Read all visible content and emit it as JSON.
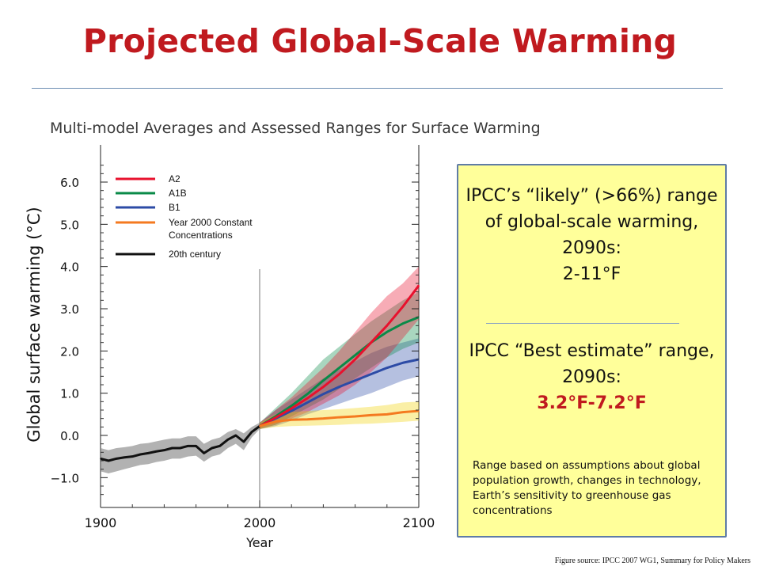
{
  "slide": {
    "title": "Projected Global-Scale Warming",
    "source": "Figure source: IPCC 2007 WG1, Summary for Policy Makers"
  },
  "info_box": {
    "likely_text": "IPCC’s “likely” (>66%) range of global-scale warming, 2090s:",
    "likely_range": "2-11°F",
    "best_text": "IPCC “Best estimate” range, 2090s:",
    "best_range": "3.2°F-7.2°F",
    "note": "Range based on assumptions about global population growth,  changes in technology, Earth’s sensitivity to greenhouse gas concentrations",
    "background": "#ffff9a",
    "border": "#5f7ca6"
  },
  "colors": {
    "title": "#c01a1f",
    "best_range": "#c01a1f"
  },
  "chart_data": {
    "type": "line",
    "title": "Multi-model Averages and Assessed Ranges for Surface Warming",
    "xlabel": "Year",
    "ylabel": "Global surface warming (°C)",
    "xlim": [
      1900,
      2100
    ],
    "ylim": [
      -1.5,
      6.8
    ],
    "xticks": [
      1900,
      2000,
      2100
    ],
    "xtick_labels": [
      "1900",
      "2000",
      "2100"
    ],
    "yticks": [
      -1.0,
      0.0,
      1.0,
      2.0,
      3.0,
      4.0,
      5.0,
      6.0
    ],
    "ytick_labels": [
      "−1.0",
      "0.0",
      "1.0",
      "2.0",
      "3.0",
      "4.0",
      "5.0",
      "6.0"
    ],
    "divider_year": 2000,
    "legend_position": "top-left",
    "grid": false,
    "series": [
      {
        "name": "A2",
        "color": "#e8112d",
        "band_color": "#e8112d",
        "x": [
          2000,
          2010,
          2020,
          2030,
          2040,
          2050,
          2060,
          2070,
          2080,
          2090,
          2100
        ],
        "values": [
          0.22,
          0.42,
          0.64,
          0.88,
          1.15,
          1.45,
          1.8,
          2.2,
          2.6,
          3.05,
          3.55
        ],
        "upper": [
          0.3,
          0.6,
          0.9,
          1.25,
          1.6,
          2.0,
          2.45,
          2.9,
          3.3,
          3.6,
          4.0
        ],
        "lower": [
          0.15,
          0.25,
          0.4,
          0.55,
          0.75,
          0.95,
          1.2,
          1.5,
          1.85,
          2.3,
          2.75
        ]
      },
      {
        "name": "A1B",
        "color": "#0a8a48",
        "band_color": "#0a8a48",
        "x": [
          2000,
          2010,
          2020,
          2030,
          2040,
          2050,
          2060,
          2070,
          2080,
          2090,
          2100
        ],
        "values": [
          0.22,
          0.45,
          0.7,
          0.98,
          1.3,
          1.6,
          1.9,
          2.2,
          2.45,
          2.65,
          2.8
        ],
        "upper": [
          0.3,
          0.65,
          1.0,
          1.4,
          1.8,
          2.1,
          2.4,
          2.7,
          2.95,
          3.2,
          3.4
        ],
        "lower": [
          0.15,
          0.25,
          0.45,
          0.65,
          0.85,
          1.1,
          1.35,
          1.6,
          1.85,
          2.05,
          2.2
        ]
      },
      {
        "name": "B1",
        "color": "#2c4ba6",
        "band_color": "#2c4ba6",
        "x": [
          2000,
          2010,
          2020,
          2030,
          2040,
          2050,
          2060,
          2070,
          2080,
          2090,
          2100
        ],
        "values": [
          0.22,
          0.4,
          0.58,
          0.78,
          0.98,
          1.15,
          1.3,
          1.45,
          1.6,
          1.72,
          1.8
        ],
        "upper": [
          0.3,
          0.6,
          0.85,
          1.1,
          1.35,
          1.55,
          1.75,
          1.95,
          2.1,
          2.2,
          2.3
        ],
        "lower": [
          0.15,
          0.22,
          0.35,
          0.5,
          0.62,
          0.75,
          0.88,
          1.0,
          1.15,
          1.3,
          1.4
        ]
      },
      {
        "name": "Year 2000 Constant Concentrations",
        "color": "#f47a20",
        "band_color": "#f0d000",
        "x": [
          2000,
          2010,
          2020,
          2030,
          2040,
          2050,
          2060,
          2070,
          2080,
          2090,
          2100
        ],
        "values": [
          0.22,
          0.33,
          0.37,
          0.38,
          0.4,
          0.43,
          0.45,
          0.48,
          0.5,
          0.55,
          0.58
        ],
        "upper": [
          0.3,
          0.5,
          0.55,
          0.58,
          0.6,
          0.62,
          0.65,
          0.68,
          0.72,
          0.78,
          0.8
        ],
        "lower": [
          0.15,
          0.2,
          0.22,
          0.23,
          0.24,
          0.25,
          0.27,
          0.28,
          0.3,
          0.32,
          0.35
        ]
      },
      {
        "name": "20th century",
        "color": "#111111",
        "band_color": "#7f7f7f",
        "x": [
          1900,
          1905,
          1910,
          1915,
          1920,
          1925,
          1930,
          1935,
          1940,
          1945,
          1950,
          1955,
          1960,
          1965,
          1970,
          1975,
          1980,
          1985,
          1990,
          1995,
          2000
        ],
        "values": [
          -0.55,
          -0.6,
          -0.55,
          -0.52,
          -0.5,
          -0.45,
          -0.42,
          -0.38,
          -0.35,
          -0.3,
          -0.3,
          -0.25,
          -0.25,
          -0.42,
          -0.3,
          -0.25,
          -0.1,
          0.0,
          -0.15,
          0.08,
          0.22
        ],
        "upper": [
          -0.3,
          -0.35,
          -0.3,
          -0.28,
          -0.25,
          -0.2,
          -0.18,
          -0.14,
          -0.1,
          -0.07,
          -0.07,
          -0.02,
          -0.02,
          -0.2,
          -0.1,
          -0.05,
          0.08,
          0.15,
          0.05,
          0.2,
          0.3
        ],
        "lower": [
          -0.85,
          -0.9,
          -0.85,
          -0.8,
          -0.75,
          -0.7,
          -0.68,
          -0.63,
          -0.6,
          -0.55,
          -0.55,
          -0.5,
          -0.48,
          -0.62,
          -0.5,
          -0.45,
          -0.3,
          -0.2,
          -0.35,
          -0.05,
          0.15
        ]
      }
    ]
  }
}
